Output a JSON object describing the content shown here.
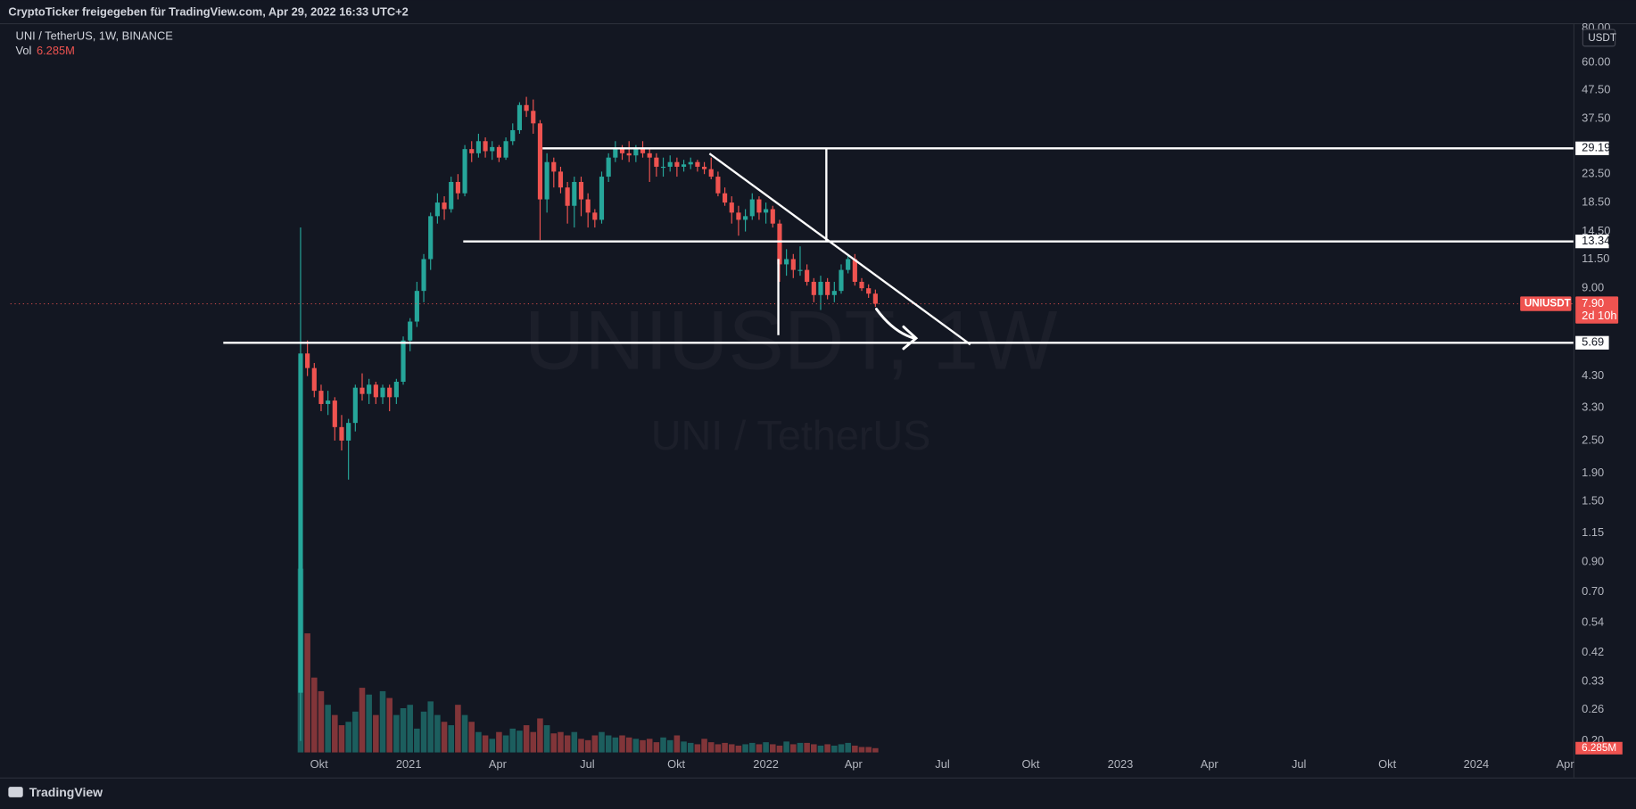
{
  "header": "CryptoTicker freigegeben für TradingView.com, Apr 29, 2022 16:33 UTC+2",
  "brand": "TradingView",
  "chart_data": {
    "type": "candlestick",
    "title": "UNI / TetherUS, 1W, BINANCE",
    "watermark": "UNIUSDT, 1W",
    "watermark_sub": "UNI / TetherUS",
    "volume_label": "Vol",
    "volume_last_label": "6.285M",
    "currency": "USDT",
    "symbol": "UNIUSDT",
    "countdown": "2d 10h",
    "last_price": {
      "value": 7.9,
      "label": "7.90"
    },
    "levels": [
      29.19,
      13.34,
      5.69
    ],
    "up_color": "#26a69a",
    "down_color": "#ef5350",
    "log_scale": true,
    "grid": false,
    "ylim": [
      0.18,
      83.6
    ],
    "yticks": [
      {
        "value": 80,
        "label": "80.00"
      },
      {
        "value": 60,
        "label": "60.00"
      },
      {
        "value": 47.5,
        "label": "47.50"
      },
      {
        "value": 37.5,
        "label": "37.50"
      },
      {
        "value": 23.5,
        "label": "23.50"
      },
      {
        "value": 18.5,
        "label": "18.50"
      },
      {
        "value": 14.5,
        "label": "14.50"
      },
      {
        "value": 11.5,
        "label": "11.50"
      },
      {
        "value": 9,
        "label": "9.00"
      },
      {
        "value": 4.3,
        "label": "4.30"
      },
      {
        "value": 3.3,
        "label": "3.30"
      },
      {
        "value": 2.5,
        "label": "2.50"
      },
      {
        "value": 1.9,
        "label": "1.90"
      },
      {
        "value": 1.5,
        "label": "1.50"
      },
      1.15,
      {
        "value": 0.9,
        "label": "0.90"
      },
      {
        "value": 0.7,
        "label": "0.70"
      },
      0.54,
      0.42,
      0.33,
      0.26,
      {
        "value": 0.2,
        "label": "0.20"
      }
    ],
    "xlim": [
      -42.4,
      186
    ],
    "xticks": [
      {
        "value": 2.7,
        "label": "Okt"
      },
      {
        "value": 15.8,
        "label": "2021"
      },
      {
        "value": 28.8,
        "label": "Apr"
      },
      {
        "value": 41.9,
        "label": "Jul"
      },
      {
        "value": 54.9,
        "label": "Okt"
      },
      {
        "value": 68.0,
        "label": "2022"
      },
      {
        "value": 80.8,
        "label": "Apr"
      },
      {
        "value": 93.8,
        "label": "Jul"
      },
      {
        "value": 106.7,
        "label": "Okt"
      },
      {
        "value": 119.8,
        "label": "2023"
      },
      {
        "value": 132.8,
        "label": "Apr"
      },
      {
        "value": 145.9,
        "label": "Jul"
      },
      {
        "value": 158.8,
        "label": "Okt"
      },
      {
        "value": 171.8,
        "label": "2024"
      },
      {
        "value": 184.8,
        "label": "Apr"
      }
    ],
    "volume_ylim": [
      0,
      460000000
    ],
    "ohlc": [
      [
        0.3,
        15,
        0.2,
        5.2
      ],
      [
        5.2,
        5.8,
        4.3,
        4.6
      ],
      [
        4.6,
        4.8,
        3.6,
        3.8
      ],
      [
        3.8,
        4.0,
        3.2,
        3.4
      ],
      [
        3.4,
        3.8,
        3.1,
        3.5
      ],
      [
        3.5,
        3.6,
        2.5,
        2.8
      ],
      [
        2.8,
        3.1,
        2.3,
        2.5
      ],
      [
        2.5,
        3.0,
        1.8,
        2.9
      ],
      [
        2.9,
        4.0,
        2.7,
        3.9
      ],
      [
        3.9,
        4.4,
        3.5,
        3.7
      ],
      [
        3.7,
        4.2,
        3.4,
        4.0
      ],
      [
        4.0,
        4.1,
        3.4,
        3.6
      ],
      [
        3.6,
        4.0,
        3.4,
        3.9
      ],
      [
        3.9,
        4.0,
        3.2,
        3.6
      ],
      [
        3.6,
        4.2,
        3.4,
        4.1
      ],
      [
        4.1,
        6.0,
        4.0,
        5.8
      ],
      [
        5.8,
        7.0,
        5.3,
        6.8
      ],
      [
        6.8,
        9.5,
        6.5,
        8.8
      ],
      [
        8.8,
        12,
        8.0,
        11.5
      ],
      [
        11.5,
        17,
        10.5,
        16.5
      ],
      [
        16.5,
        20,
        15.5,
        18.5
      ],
      [
        18.5,
        19.5,
        16,
        17.5
      ],
      [
        17.5,
        23,
        17,
        22
      ],
      [
        22,
        23.5,
        19,
        20
      ],
      [
        20,
        30,
        19.5,
        29
      ],
      [
        29,
        31,
        26,
        28
      ],
      [
        28,
        33,
        27,
        31
      ],
      [
        31,
        32,
        27,
        28.5
      ],
      [
        28.5,
        31,
        26.5,
        29.5
      ],
      [
        29.5,
        30,
        26,
        27
      ],
      [
        27,
        32,
        26.5,
        31
      ],
      [
        31,
        36,
        30,
        34
      ],
      [
        34,
        43,
        33,
        42
      ],
      [
        42,
        45,
        38,
        40
      ],
      [
        40,
        44,
        33,
        36
      ],
      [
        36,
        37,
        13.5,
        19
      ],
      [
        19,
        28,
        17,
        26
      ],
      [
        26,
        27,
        21,
        24
      ],
      [
        24,
        25,
        20,
        21
      ],
      [
        21,
        22,
        15.5,
        18
      ],
      [
        18,
        23,
        15,
        22
      ],
      [
        22,
        23,
        16.5,
        19
      ],
      [
        19,
        20,
        15,
        17
      ],
      [
        17,
        17.5,
        15,
        16
      ],
      [
        16,
        24,
        15.5,
        23
      ],
      [
        23,
        28,
        22,
        27
      ],
      [
        27,
        31,
        26,
        29
      ],
      [
        29,
        30,
        26.5,
        28
      ],
      [
        28,
        31,
        26,
        27.5
      ],
      [
        27.5,
        30,
        26,
        29
      ],
      [
        29,
        31,
        27,
        28
      ],
      [
        28,
        29,
        22,
        27
      ],
      [
        27,
        28,
        23,
        25
      ],
      [
        25,
        27,
        23,
        25
      ],
      [
        25,
        27.5,
        24,
        26
      ],
      [
        26,
        27,
        23,
        25
      ],
      [
        25,
        26.5,
        24,
        25.5
      ],
      [
        25.5,
        27,
        24.5,
        26
      ],
      [
        26,
        26.5,
        24,
        25
      ],
      [
        25,
        26,
        23.5,
        24.5
      ],
      [
        24.5,
        27,
        22.5,
        23
      ],
      [
        23,
        24,
        19.5,
        20
      ],
      [
        20,
        21,
        18,
        18.5
      ],
      [
        18.5,
        19.5,
        15.5,
        17
      ],
      [
        17,
        18,
        14,
        16
      ],
      [
        16,
        17.5,
        14.5,
        16.5
      ],
      [
        16.5,
        20,
        16,
        19
      ],
      [
        19,
        19.5,
        16,
        17
      ],
      [
        17,
        18.5,
        15.5,
        17.5
      ],
      [
        17.5,
        18,
        15,
        15.5
      ],
      [
        15.5,
        16,
        9.5,
        11
      ],
      [
        11,
        12.5,
        10,
        11.5
      ],
      [
        11.5,
        12,
        9.8,
        10.5
      ],
      [
        10.5,
        12.8,
        10,
        10.5
      ],
      [
        10.5,
        11,
        9.2,
        9.5
      ],
      [
        9.5,
        9.8,
        8.0,
        8.5
      ],
      [
        8.5,
        10,
        7.5,
        9.5
      ],
      [
        9.5,
        9.8,
        8.2,
        8.5
      ],
      [
        8.5,
        9.5,
        8.0,
        8.8
      ],
      [
        8.8,
        11,
        8.6,
        10.5
      ],
      [
        10.5,
        12,
        10.2,
        11.5
      ],
      [
        11.5,
        12,
        9.2,
        9.5
      ],
      [
        9.5,
        9.8,
        8.8,
        9.0
      ],
      [
        9.0,
        9.3,
        8.3,
        8.6
      ],
      [
        8.6,
        8.9,
        7.7,
        7.9
      ]
    ],
    "volume": [
      270000000,
      175000000,
      110000000,
      90000000,
      70000000,
      55000000,
      40000000,
      45000000,
      60000000,
      95000000,
      85000000,
      55000000,
      90000000,
      80000000,
      55000000,
      65000000,
      70000000,
      35000000,
      60000000,
      75000000,
      55000000,
      45000000,
      40000000,
      70000000,
      55000000,
      45000000,
      30000000,
      25000000,
      20000000,
      30000000,
      25000000,
      35000000,
      32000000,
      40000000,
      30000000,
      50000000,
      40000000,
      28000000,
      30000000,
      25000000,
      30000000,
      20000000,
      18000000,
      25000000,
      30000000,
      25000000,
      22000000,
      25000000,
      22000000,
      20000000,
      18000000,
      20000000,
      15000000,
      22000000,
      18000000,
      25000000,
      16000000,
      14000000,
      12000000,
      20000000,
      15000000,
      12000000,
      14000000,
      12000000,
      10000000,
      12000000,
      14000000,
      12000000,
      15000000,
      12000000,
      10000000,
      16000000,
      12000000,
      14000000,
      14000000,
      12000000,
      10000000,
      12000000,
      10000000,
      12000000,
      14000000,
      10000000,
      8000000,
      8000000,
      6285000
    ]
  }
}
